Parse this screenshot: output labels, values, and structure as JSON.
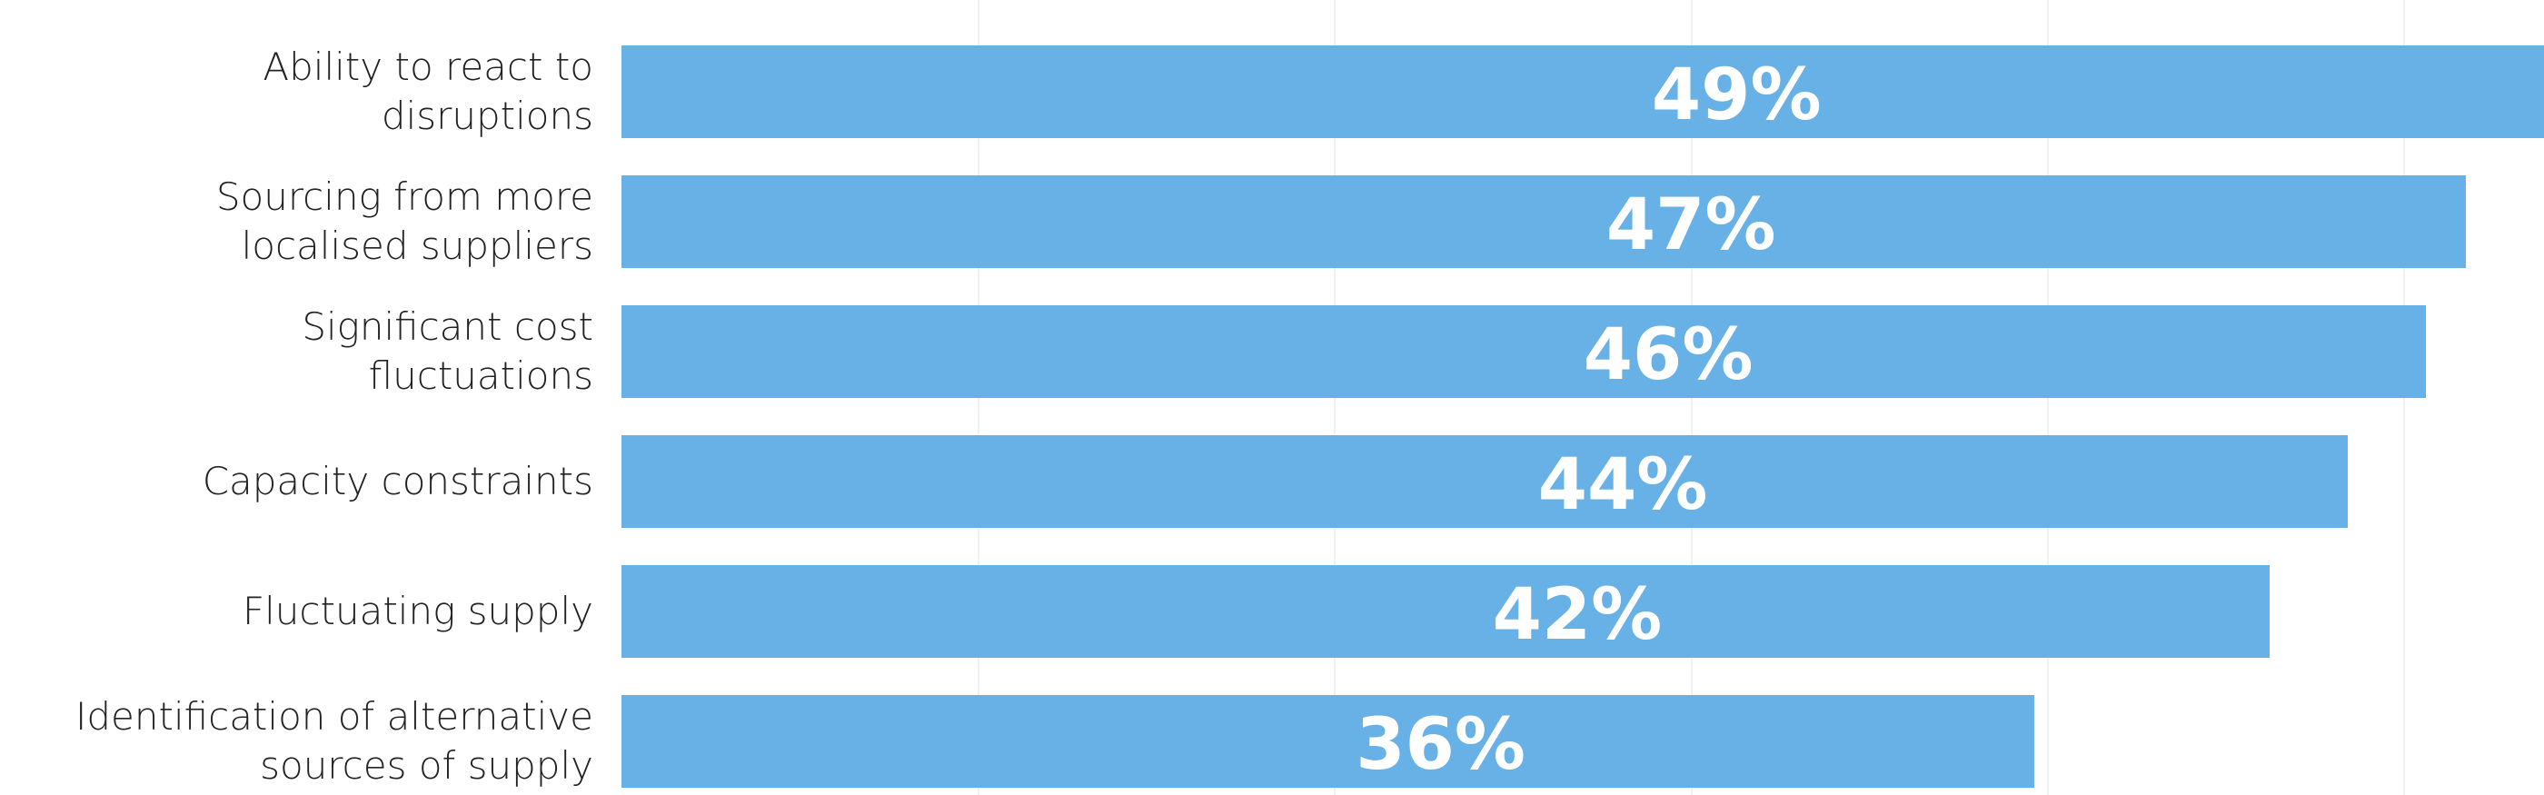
{
  "chart_data": {
    "type": "hbar",
    "categories": [
      "Ability to react to\ndisruptions",
      "Sourcing from more\nlocalised suppliers",
      "Significant cost\nfluctuations",
      "Capacity constraints",
      "Fluctuating supply",
      "Identification of alternative\nsources of supply"
    ],
    "values": [
      49,
      47,
      46,
      44,
      42,
      36
    ],
    "value_labels": [
      "49%",
      "47%",
      "46%",
      "44%",
      "42%",
      "36%"
    ],
    "color": "#67b1e6",
    "xlim": [
      0,
      49
    ]
  }
}
